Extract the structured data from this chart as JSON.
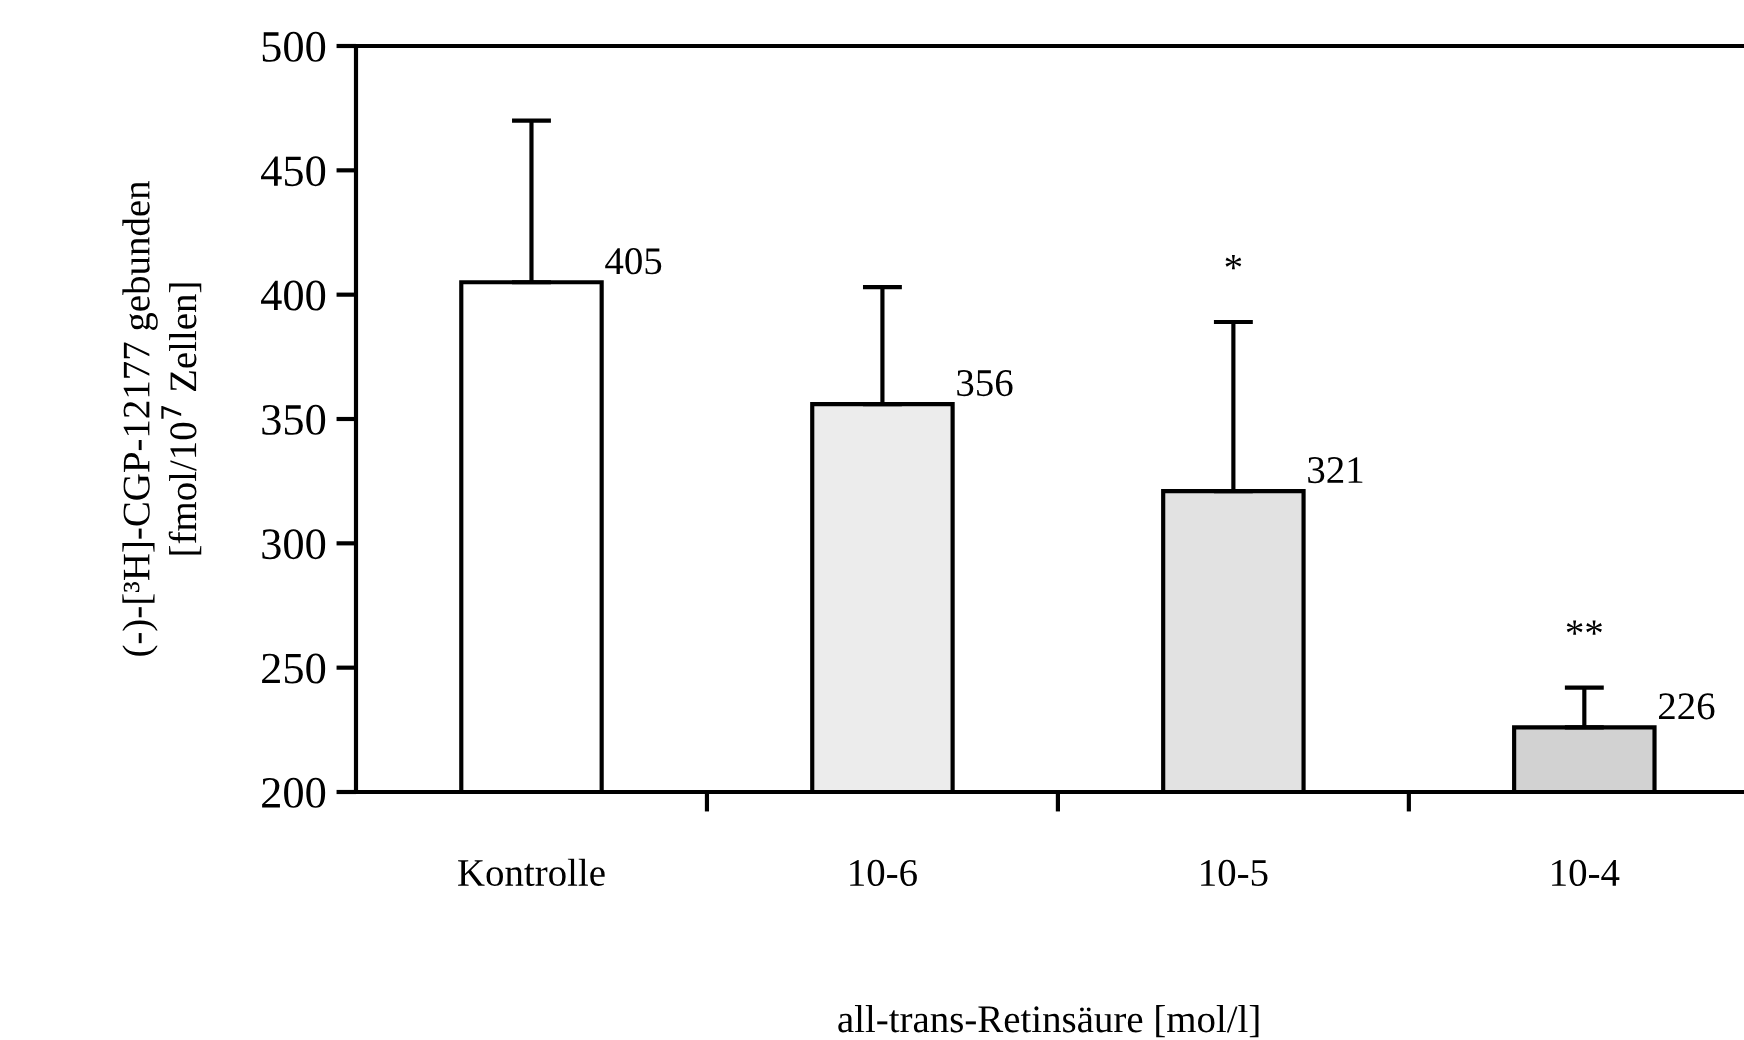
{
  "chart_data": {
    "type": "bar",
    "xlabel": "all-trans-Retinsäure [mol/l]",
    "ylabel": "(-)-[³H]-CGP-12177 gebunden\n[fmol/10$^{7}$ Zellen]",
    "categories": [
      "Kontrolle",
      "10-6",
      "10-5",
      "10-4"
    ],
    "values": [
      405,
      356,
      321,
      226
    ],
    "colors": [
      "#ffffff",
      "#ececec",
      "#e2e2e2",
      "#d2d2d2"
    ],
    "errors": [
      [
        405,
        470
      ],
      [
        356,
        403
      ],
      [
        321,
        389
      ],
      [
        226,
        242
      ]
    ],
    "data_labels": true,
    "ylim": [
      200,
      500
    ],
    "yticks": [
      200,
      250,
      300,
      350,
      400,
      450,
      500
    ],
    "grid": false,
    "legend": false,
    "annotations": [
      {
        "text": "*",
        "x": "10-5",
        "y": 389
      },
      {
        "text": "**",
        "x": "10-4",
        "y": 242
      }
    ]
  }
}
